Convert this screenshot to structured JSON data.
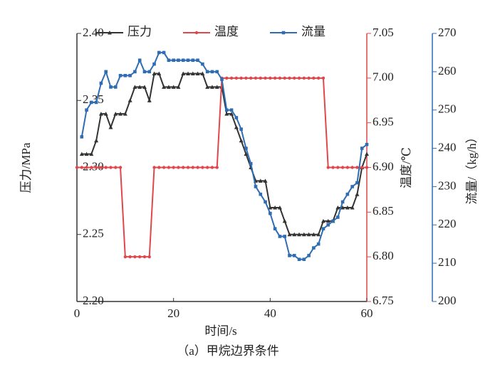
{
  "chart_data": {
    "type": "line",
    "xlabel": "时间/s",
    "caption": "（a）甲烷边界条件",
    "ylabel": "压力/MPa",
    "y2label": "温度/℃",
    "y3label": "流量/（kg/h）",
    "x": [
      0,
      1,
      2,
      3,
      4,
      5,
      6,
      7,
      8,
      9,
      10,
      11,
      12,
      13,
      14,
      15,
      16,
      17,
      18,
      19,
      20,
      21,
      22,
      23,
      24,
      25,
      26,
      27,
      28,
      29,
      30,
      31,
      32,
      33,
      34,
      35,
      36,
      37,
      38,
      39,
      40,
      41,
      42,
      43,
      44,
      45,
      46,
      47,
      48,
      49,
      50,
      51,
      52,
      53,
      54,
      55,
      56,
      57,
      58,
      59,
      60
    ],
    "xlim": [
      0,
      60
    ],
    "xticks": [
      0,
      20,
      40,
      60
    ],
    "ylim": [
      2.2,
      2.4
    ],
    "yticks": [
      {
        "value": 2.2,
        "label": "2.20"
      },
      2.25,
      {
        "value": 2.3,
        "label": "2.30"
      },
      2.35,
      {
        "value": 2.4,
        "label": "2.40"
      }
    ],
    "y2lim": [
      6.75,
      7.05
    ],
    "y2ticks": [
      6.75,
      {
        "value": 6.8,
        "label": "6.80"
      },
      6.85,
      {
        "value": 6.9,
        "label": "6.90"
      },
      6.95,
      {
        "value": 7,
        "label": "7.00"
      },
      7.05
    ],
    "y2color": "#e0474c",
    "y3lim": [
      200,
      270
    ],
    "y3ticks": [
      200,
      210,
      220,
      230,
      240,
      250,
      260,
      270
    ],
    "y3color": "#2f6db3",
    "series": [
      {
        "name": "压力",
        "color": "#333333",
        "marker": "triangle",
        "axis": "y",
        "values": [
          null,
          2.31,
          2.31,
          2.31,
          2.32,
          2.34,
          2.34,
          2.33,
          2.34,
          2.34,
          2.34,
          2.35,
          2.36,
          2.36,
          2.36,
          2.35,
          2.37,
          2.37,
          2.36,
          2.36,
          2.36,
          2.36,
          2.37,
          2.37,
          2.37,
          2.37,
          2.37,
          2.36,
          2.36,
          2.36,
          2.36,
          2.34,
          2.34,
          2.33,
          2.32,
          2.31,
          2.3,
          2.29,
          2.29,
          2.29,
          2.27,
          2.27,
          2.27,
          2.26,
          2.25,
          2.25,
          2.25,
          2.25,
          2.25,
          2.25,
          2.25,
          2.26,
          2.26,
          2.26,
          2.27,
          2.27,
          2.27,
          2.27,
          2.28,
          2.3,
          2.31
        ]
      },
      {
        "name": "温度",
        "color": "#e0474c",
        "marker": "circle",
        "axis": "y2",
        "values": [
          6.9,
          6.9,
          6.9,
          6.9,
          6.9,
          6.9,
          6.9,
          6.9,
          6.9,
          6.9,
          6.8,
          6.8,
          6.8,
          6.8,
          6.8,
          6.8,
          6.9,
          6.9,
          6.9,
          6.9,
          6.9,
          6.9,
          6.9,
          6.9,
          6.9,
          6.9,
          6.9,
          6.9,
          6.9,
          6.9,
          7,
          7,
          7,
          7,
          7,
          7,
          7,
          7,
          7,
          7,
          7,
          7,
          7,
          7,
          7,
          7,
          7,
          7,
          7,
          7,
          7,
          7,
          6.9,
          6.9,
          6.9,
          6.9,
          6.9,
          6.9,
          6.9,
          6.9,
          6.9
        ]
      },
      {
        "name": "流量",
        "color": "#2f6db3",
        "marker": "square",
        "axis": "y3",
        "values": [
          null,
          243,
          250,
          252,
          252,
          257,
          260,
          256,
          256,
          259,
          259,
          259,
          260,
          263,
          260,
          260,
          262,
          265,
          265,
          263,
          263,
          263,
          263,
          263,
          263,
          263,
          262,
          260,
          260,
          260,
          258,
          250,
          250,
          248,
          245,
          240,
          236,
          230,
          228,
          226,
          223,
          219,
          217,
          217,
          212,
          212,
          211,
          211,
          212,
          214,
          215,
          219,
          220,
          221,
          222,
          226,
          228,
          230,
          231,
          240,
          241
        ]
      }
    ]
  }
}
